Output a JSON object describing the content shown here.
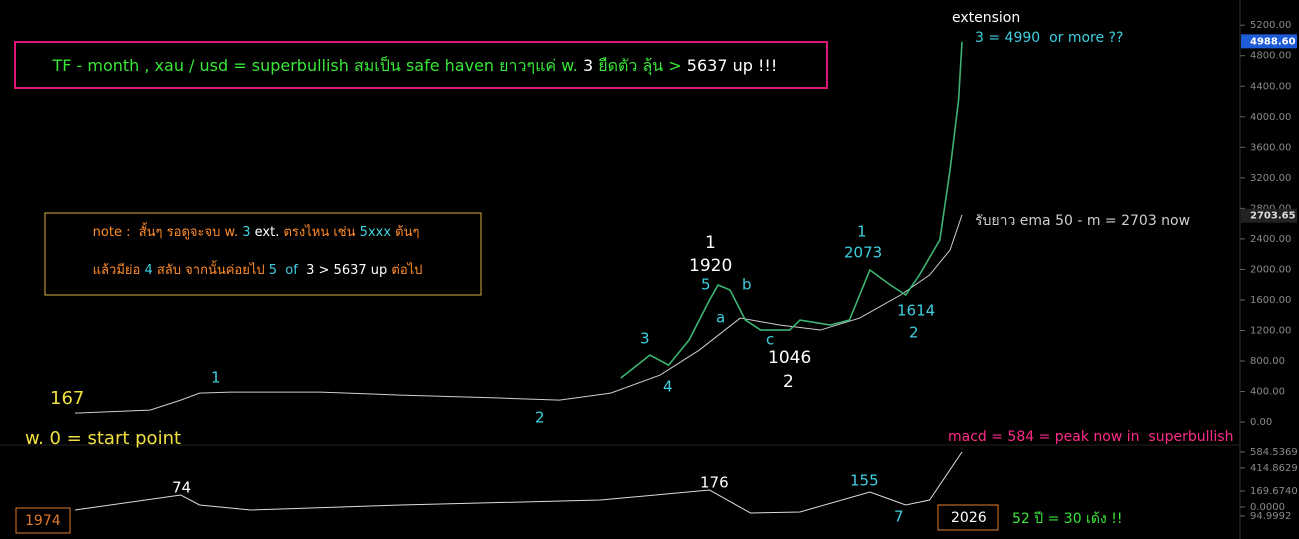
{
  "chart_data": {
    "type": "line",
    "title_parts": [
      "TF - month , xau / usd = superbullish สมเป็น safe haven ยาวๆแค่ w. ",
      "3",
      " ยืดตัว ลุ้น > ",
      "5637 up !!!"
    ],
    "note_line1": [
      "note :  สั้นๆ รอดูจะจบ w. ",
      "3",
      " ext.",
      " ตรงไหน เช่น ",
      "5xxx",
      " ต้นๆ"
    ],
    "note_line2": [
      "แล้วมีย่อ ",
      "4",
      " สลับ จากนั้นค่อยไป ",
      "5",
      "  of  ",
      "3",
      " > 5637 up",
      " ต่อไป"
    ],
    "annotations": [
      "extension",
      "3 = 4990  or more ??",
      "รับยาว ema 50 - m = 2703 now",
      "167",
      "w. 0 = start point",
      "1",
      "2",
      "3",
      "4",
      "5",
      "1",
      "1920",
      "b",
      "a",
      "c",
      "1046",
      "2",
      "1",
      "2073",
      "1614",
      "2",
      "macd = 584 = peak now in  superbullish",
      "74",
      "176",
      "155",
      "7",
      "1974",
      "2026",
      "52 ปี = 30 เด้ง !!"
    ],
    "ylim": [
      -300,
      5530
    ],
    "yticks": [
      {
        "value": 0,
        "label": "0.00"
      },
      {
        "value": 400,
        "label": "400.00"
      },
      {
        "value": 800,
        "label": "800.00"
      },
      {
        "value": 1200,
        "label": "1200.00"
      },
      {
        "value": 1600,
        "label": "1600.00"
      },
      {
        "value": 2000,
        "label": "2000.00"
      },
      {
        "value": 2400,
        "label": "2400.00"
      },
      {
        "value": 2800,
        "label": "2800.00"
      },
      {
        "value": 3200,
        "label": "3200.00"
      },
      {
        "value": 3600,
        "label": "3600.00"
      },
      {
        "value": 4000,
        "label": "4000.00"
      },
      {
        "value": 4400,
        "label": "4400.00"
      },
      {
        "value": 4800,
        "label": "4800.00"
      },
      {
        "value": 5200,
        "label": "5200.00"
      }
    ],
    "last_price": {
      "value": 4988.6,
      "label": "4988.60"
    },
    "ema_last": {
      "value": 2703.65,
      "label": "2703.65"
    },
    "series": [
      {
        "color": "#cfcfcf",
        "x": [
          1974.0,
          1978.4,
          1980.2,
          1981.3,
          1983.1,
          1988.4,
          1993.1,
          1998.9,
          2002.4,
          2005.4,
          2008.3,
          2010.6,
          2013.0,
          2015.3,
          2017.7,
          2020.0,
          2022.4,
          2024.1,
          2025.3,
          2026.0
        ],
        "values": [
          118,
          157,
          288,
          380,
          393,
          393,
          354,
          315,
          288,
          380,
          616,
          944,
          1363,
          1272,
          1206,
          1363,
          1665,
          1927,
          2255,
          2714
        ]
      },
      {
        "color": "#3cb371",
        "x": [
          2006.0,
          2007.7,
          2008.8,
          2010.0,
          2011.2,
          2011.7,
          2012.4,
          2013.3,
          2014.2,
          2015.9,
          2016.5,
          2018.3,
          2019.4,
          2020.6,
          2021.8,
          2022.7,
          2023.5,
          2024.7,
          2025.3,
          2025.8,
          2026.0
        ],
        "values": [
          577,
          878,
          747,
          1075,
          1599,
          1796,
          1731,
          1337,
          1206,
          1206,
          1337,
          1272,
          1337,
          1993,
          1796,
          1665,
          1927,
          2386,
          3304,
          4221,
          4982
        ]
      }
    ],
    "macd": {
      "ylim": [
        -340,
        658
      ],
      "yticks": [
        {
          "value": 584.5369,
          "label": "584.5369"
        },
        {
          "value": 414.8629,
          "label": "414.8629"
        },
        {
          "value": 169.674,
          "label": "169.6740"
        },
        {
          "value": 0,
          "label": "0.0000"
        },
        {
          "value": -94.9992,
          "label": "94.9992"
        }
      ],
      "color": "#dddddd",
      "x": [
        1974.0,
        1980.2,
        1981.3,
        1984.3,
        1993.1,
        2004.8,
        2011.2,
        2013.6,
        2016.5,
        2020.6,
        2022.7,
        2024.1,
        2026.0
      ],
      "values": [
        -32,
        127,
        21,
        -32,
        21,
        74,
        180,
        -64,
        -53,
        159,
        21,
        74,
        584
      ]
    }
  }
}
